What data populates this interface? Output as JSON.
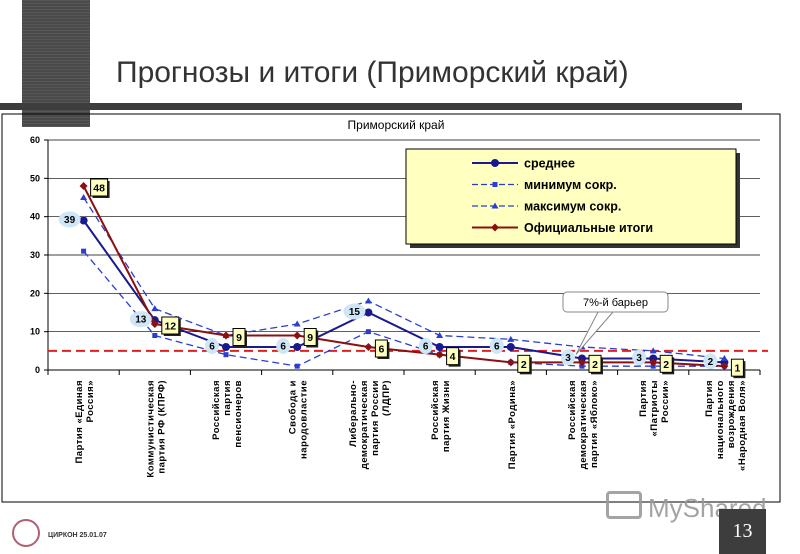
{
  "slide": {
    "title": "Прогнозы и итоги (Приморский край)",
    "page_number": "13",
    "footer": "ЦИРКОН 25.01.07",
    "watermark": "MyShared"
  },
  "chart_data": {
    "type": "line",
    "title": "Приморский край",
    "ylim": [
      0,
      60
    ],
    "yticks": [
      0,
      10,
      20,
      30,
      40,
      50,
      60
    ],
    "categories": [
      [
        "Партия «Единая",
        "Россия»"
      ],
      [
        "Коммунистическая",
        "партия РФ (КПРФ)"
      ],
      [
        "Российская",
        "партия",
        "пенсионеров"
      ],
      [
        "Свобода и",
        "народовластие"
      ],
      [
        "Либерально-",
        "демократическая",
        "партия России",
        "(ЛДПР)"
      ],
      [
        "Российская",
        "партия Жизни"
      ],
      [
        "Партия «Родина»"
      ],
      [
        "Российская",
        "демократическая",
        "партия «Яблоко»"
      ],
      [
        "Партия",
        "«Патриоты",
        "России»"
      ],
      [
        "Партия",
        "национального",
        "возрождения",
        "«Народная Воля»"
      ]
    ],
    "series": [
      {
        "name": "среднее",
        "color": "#1a1a8c",
        "dash": "solid",
        "marker": "circle",
        "values": [
          39,
          13,
          6,
          6,
          15,
          6,
          6,
          3,
          3,
          2
        ],
        "point_labels": [
          "39",
          "13",
          "6",
          "6",
          "15",
          "6",
          "6",
          "3",
          "3",
          "2"
        ]
      },
      {
        "name": "минимум сокр.",
        "color": "#2a3fd0",
        "dash": "dashed",
        "marker": "square",
        "values": [
          31,
          9,
          4,
          1,
          10,
          4,
          2,
          1,
          1,
          1
        ]
      },
      {
        "name": "максимум сокр.",
        "color": "#2a3fd0",
        "dash": "dashed",
        "marker": "triangle",
        "values": [
          45,
          16,
          9,
          12,
          18,
          9,
          8,
          6,
          5,
          3
        ]
      },
      {
        "name": "Официальные итоги",
        "color": "#8b1010",
        "dash": "solid",
        "marker": "diamond",
        "values": [
          48,
          12,
          9,
          9,
          6,
          4,
          2,
          2,
          2,
          1
        ],
        "point_labels": [
          "48",
          "12",
          "9",
          "9",
          "6",
          "4",
          "2",
          "2",
          "2",
          "1"
        ]
      }
    ],
    "threshold": {
      "value": 5,
      "color": "#e02020",
      "label": "7%-й барьер"
    }
  }
}
